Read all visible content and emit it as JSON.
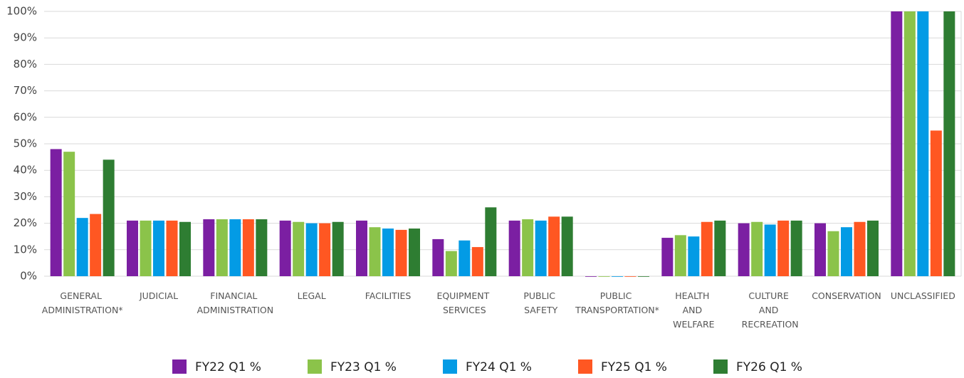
{
  "chart_data": {
    "type": "bar",
    "categories": [
      "GENERAL ADMINISTRATION*",
      "JUDICIAL",
      "FINANCIAL ADMINISTRATION",
      "LEGAL",
      "FACILITIES",
      "EQUIPMENT SERVICES",
      "PUBLIC SAFETY",
      "PUBLIC TRANSPORTATION*",
      "HEALTH AND WELFARE",
      "CULTURE AND RECREATION",
      "CONSERVATION",
      "UNCLASSIFIED"
    ],
    "series": [
      {
        "name": "FY22 Q1 %",
        "color": "#7b1fa2",
        "values": [
          48,
          21,
          21.5,
          21,
          21,
          14,
          21,
          0,
          14.5,
          20,
          20,
          100
        ]
      },
      {
        "name": "FY23 Q1 %",
        "color": "#8bc34a",
        "values": [
          47,
          21,
          21.5,
          20.5,
          18.5,
          9.5,
          21.5,
          0,
          15.5,
          20.5,
          17,
          100
        ]
      },
      {
        "name": "FY24 Q1 %",
        "color": "#039be5",
        "values": [
          22,
          21,
          21.5,
          20,
          18,
          13.5,
          21,
          0,
          15,
          19.5,
          18.5,
          100
        ]
      },
      {
        "name": "FY25 Q1 %",
        "color": "#ff5722",
        "values": [
          23.5,
          21,
          21.5,
          20,
          17.5,
          11,
          22.5,
          0,
          20.5,
          21,
          20.5,
          55
        ]
      },
      {
        "name": "FY26 Q1 %",
        "color": "#2e7d32",
        "values": [
          44,
          20.5,
          21.5,
          20.5,
          18,
          26,
          22.5,
          0,
          21,
          21,
          21,
          100
        ]
      }
    ],
    "ylim": [
      0,
      100
    ],
    "yticks": [
      {
        "value": 0,
        "label": "0%"
      },
      {
        "value": 10,
        "label": "10%"
      },
      {
        "value": 20,
        "label": "20%"
      },
      {
        "value": 30,
        "label": "30%"
      },
      {
        "value": 40,
        "label": "40%"
      },
      {
        "value": 50,
        "label": "50%"
      },
      {
        "value": 60,
        "label": "60%"
      },
      {
        "value": 70,
        "label": "70%"
      },
      {
        "value": 80,
        "label": "80%"
      },
      {
        "value": 90,
        "label": "90%"
      },
      {
        "value": 100,
        "label": "100%"
      }
    ],
    "grid": true,
    "legend": "bottom"
  }
}
